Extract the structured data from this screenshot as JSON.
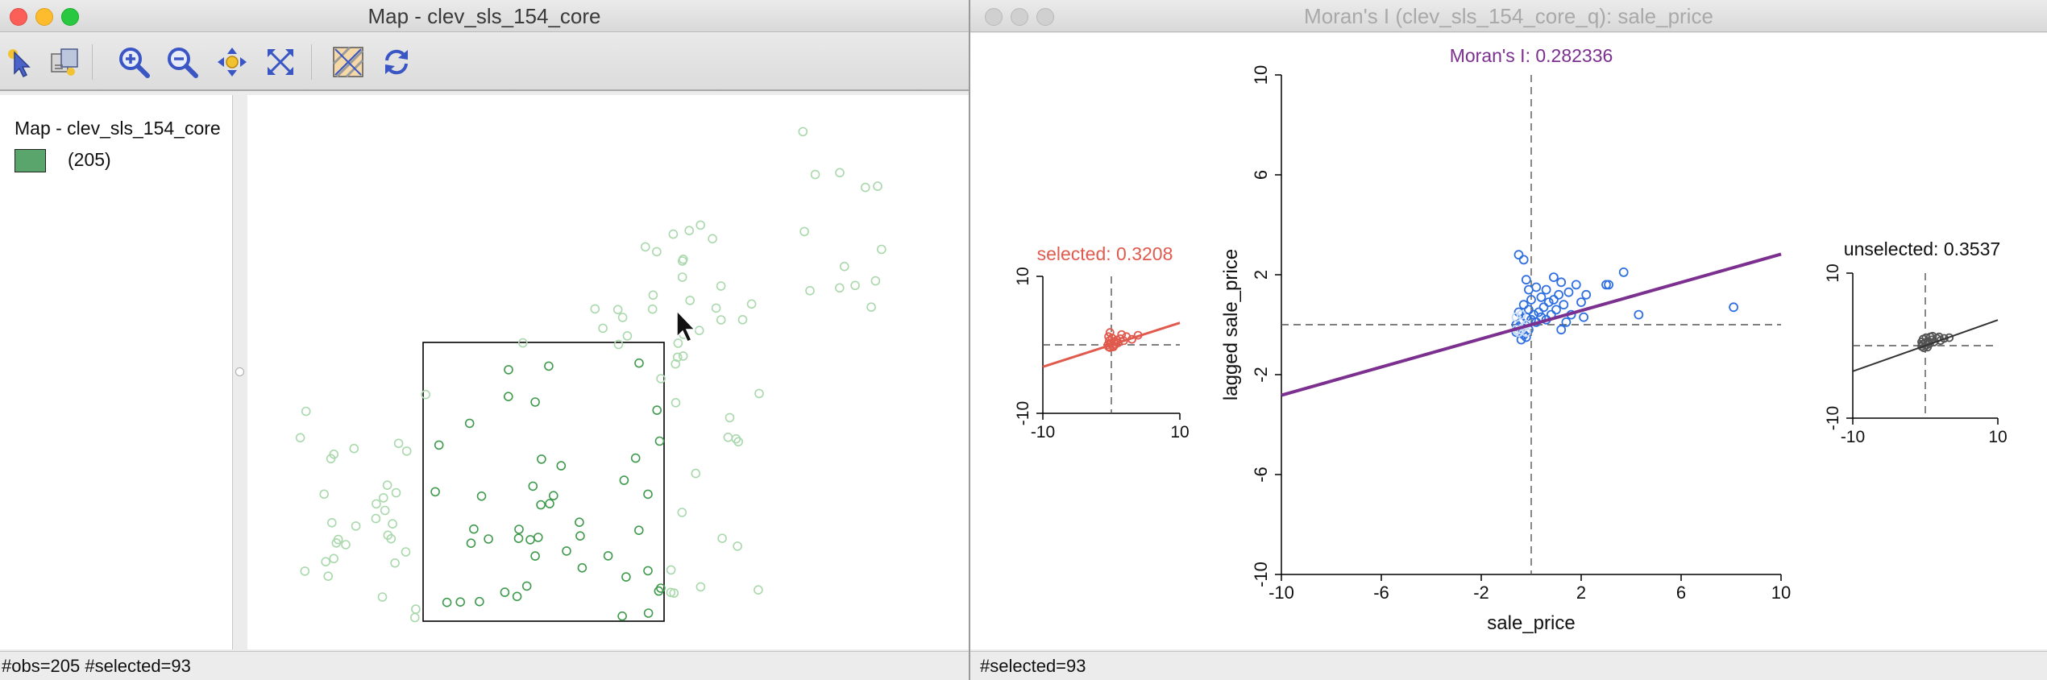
{
  "map_window": {
    "title": "Map - clev_sls_154_core",
    "toolbar": [
      {
        "icon": "select-pointer-icon",
        "label": "Select"
      },
      {
        "icon": "selection-tools-icon",
        "label": "Selection options"
      },
      {
        "icon": "zoom-in-icon",
        "label": "Zoom in"
      },
      {
        "icon": "zoom-out-icon",
        "label": "Zoom out"
      },
      {
        "icon": "pan-icon",
        "label": "Pan"
      },
      {
        "icon": "full-extent-icon",
        "label": "Full extent"
      },
      {
        "icon": "basemap-icon",
        "label": "Basemap"
      },
      {
        "icon": "refresh-icon",
        "label": "Refresh"
      }
    ],
    "legend": {
      "title": "Map - clev_sls_154_core",
      "category_count": "(205)",
      "swatch_color": "#59a56b"
    },
    "status": "#obs=205 #selected=93",
    "colors": {
      "selected_point": "#3f9a4d",
      "unselected_point": "#a9d8ac"
    }
  },
  "moran_window": {
    "title": "Moran's I (clev_sls_154_core_q): sale_price",
    "status": "#selected=93"
  },
  "chart_data": [
    {
      "type": "scatter",
      "title": "Moran's I: 0.282336",
      "xlabel": "sale_price",
      "ylabel": "lagged sale_price",
      "xlim": [
        -10,
        10
      ],
      "ylim": [
        -10,
        10
      ],
      "x_ticks": [
        "-10",
        "-6",
        "-2",
        "2",
        "6",
        "10"
      ],
      "y_ticks": [
        "-10",
        "-6",
        "-2",
        "2",
        "6",
        "10"
      ],
      "slope": 0.282336,
      "line_color": "#7b2f8e",
      "point_color": "#2f6fe0",
      "unselected_point_color": "#c9dcf5",
      "points": [
        [
          -0.6,
          -0.3
        ],
        [
          -0.5,
          -0.1
        ],
        [
          -0.4,
          0.1
        ],
        [
          -0.3,
          -0.4
        ],
        [
          -0.2,
          0.3
        ],
        [
          -0.1,
          -0.2
        ],
        [
          0.0,
          0.2
        ],
        [
          -0.5,
          0.5
        ],
        [
          -0.3,
          0.8
        ],
        [
          -0.2,
          -0.5
        ],
        [
          -0.6,
          0.0
        ],
        [
          -0.4,
          -0.6
        ],
        [
          0.1,
          0.4
        ],
        [
          -0.1,
          0.6
        ],
        [
          0.2,
          0.1
        ],
        [
          0.3,
          0.5
        ],
        [
          0.4,
          0.3
        ],
        [
          0.5,
          0.7
        ],
        [
          0.6,
          0.2
        ],
        [
          0.7,
          0.9
        ],
        [
          0.8,
          0.4
        ],
        [
          0.9,
          1.0
        ],
        [
          1.0,
          0.6
        ],
        [
          1.1,
          1.2
        ],
        [
          1.3,
          0.8
        ],
        [
          1.5,
          1.3
        ],
        [
          1.8,
          1.6
        ],
        [
          2.0,
          0.9
        ],
        [
          2.1,
          0.3
        ],
        [
          2.2,
          1.2
        ],
        [
          1.6,
          0.4
        ],
        [
          1.4,
          0.1
        ],
        [
          1.2,
          -0.2
        ],
        [
          -0.5,
          2.8
        ],
        [
          -0.3,
          2.6
        ],
        [
          -0.2,
          1.8
        ],
        [
          -0.1,
          1.4
        ],
        [
          0.0,
          1.0
        ],
        [
          0.2,
          1.5
        ],
        [
          0.4,
          1.1
        ],
        [
          0.6,
          1.4
        ],
        [
          0.9,
          1.9
        ],
        [
          1.2,
          1.7
        ],
        [
          3.0,
          1.6
        ],
        [
          3.1,
          1.6
        ],
        [
          3.7,
          2.1
        ],
        [
          4.3,
          0.4
        ],
        [
          8.1,
          0.7
        ],
        [
          -0.6,
          -0.2
        ],
        [
          -0.5,
          -0.3
        ],
        [
          -0.4,
          -0.2
        ],
        [
          -0.3,
          -0.1
        ],
        [
          -0.2,
          0.0
        ],
        [
          -0.6,
          0.3
        ],
        [
          -0.4,
          0.4
        ],
        [
          -0.2,
          -0.3
        ]
      ]
    },
    {
      "type": "scatter",
      "title": "selected: 0.3208",
      "xlim": [
        -10,
        10
      ],
      "ylim": [
        -10,
        10
      ],
      "x_ticks": [
        "-10",
        "10"
      ],
      "y_ticks": [
        "-10",
        "10"
      ],
      "slope": 0.3208,
      "color": "#e05a4e",
      "points": [
        [
          -0.5,
          0.0
        ],
        [
          -0.3,
          0.6
        ],
        [
          -0.2,
          -0.4
        ],
        [
          0.0,
          0.3
        ],
        [
          0.2,
          -0.2
        ],
        [
          0.4,
          0.5
        ],
        [
          0.6,
          0.1
        ],
        [
          0.8,
          0.7
        ],
        [
          1.0,
          0.3
        ],
        [
          -0.4,
          1.2
        ],
        [
          -0.2,
          1.8
        ],
        [
          0.1,
          1.0
        ],
        [
          1.3,
          0.9
        ],
        [
          1.8,
          0.6
        ],
        [
          2.2,
          1.2
        ],
        [
          3.0,
          0.8
        ],
        [
          3.9,
          1.4
        ],
        [
          -0.4,
          -0.3
        ],
        [
          -0.1,
          0.2
        ],
        [
          0.3,
          -0.3
        ],
        [
          0.7,
          0.4
        ],
        [
          1.5,
          1.5
        ]
      ]
    },
    {
      "type": "scatter",
      "title": "unselected: 0.3537",
      "xlim": [
        -10,
        10
      ],
      "ylim": [
        -10,
        10
      ],
      "x_ticks": [
        "-10",
        "10"
      ],
      "y_ticks": [
        "-10",
        "10"
      ],
      "slope": 0.3537,
      "color": "#555555",
      "points": [
        [
          -0.5,
          -0.1
        ],
        [
          -0.4,
          0.2
        ],
        [
          -0.2,
          -0.3
        ],
        [
          0.0,
          0.4
        ],
        [
          0.2,
          0.1
        ],
        [
          0.4,
          0.6
        ],
        [
          0.6,
          0.3
        ],
        [
          0.9,
          0.8
        ],
        [
          1.2,
          0.5
        ],
        [
          1.6,
          1.0
        ],
        [
          2.1,
          0.7
        ],
        [
          2.6,
          1.0
        ],
        [
          3.3,
          1.1
        ],
        [
          -0.3,
          0.9
        ],
        [
          0.1,
          1.1
        ],
        [
          0.7,
          1.2
        ],
        [
          -0.5,
          0.5
        ],
        [
          0.3,
          -0.2
        ],
        [
          1.0,
          1.3
        ],
        [
          1.9,
          1.2
        ]
      ]
    }
  ]
}
